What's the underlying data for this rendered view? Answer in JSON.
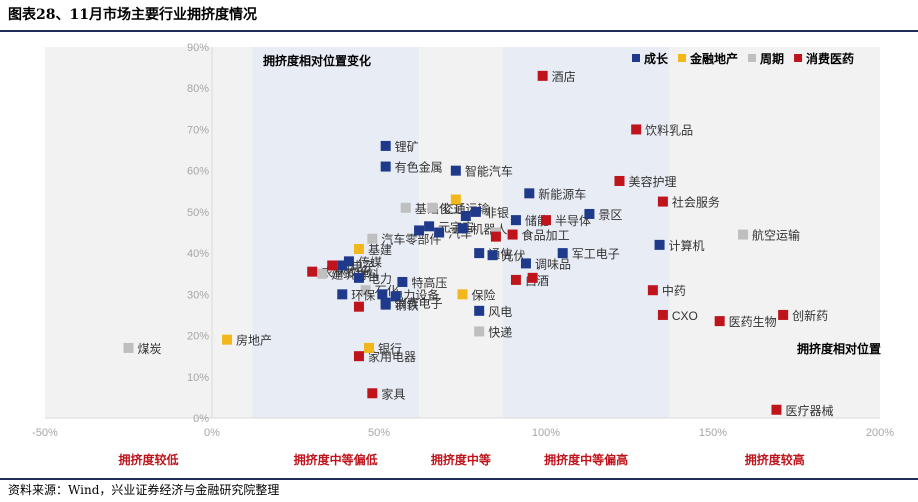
{
  "figure": {
    "title": "图表28、11月市场主要行业拥挤度情况",
    "source": "资料来源：Wind，兴业证券经济与金融研究院整理"
  },
  "chart_data": {
    "type": "scatter",
    "title": "",
    "xlabel": "拥挤度相对位置",
    "ylabel": "",
    "xlim": [
      -50,
      200
    ],
    "ylim": [
      0,
      90
    ],
    "x_ticks": [
      "-50%",
      "0%",
      "50%",
      "100%",
      "150%",
      "200%"
    ],
    "y_ticks": [
      "0%",
      "10%",
      "20%",
      "30%",
      "40%",
      "50%",
      "60%",
      "70%",
      "80%",
      "90%"
    ],
    "ylabel_annotation": "拥挤度相对位置变化",
    "grid": false,
    "legend_position": "top-right",
    "series": [
      {
        "name": "成长",
        "color": "#1f3a8a"
      },
      {
        "name": "金融地产",
        "color": "#f2b81b"
      },
      {
        "name": "周期",
        "color": "#bfbfbf"
      },
      {
        "name": "消费医药",
        "color": "#c0141c"
      }
    ],
    "zones": [
      {
        "label": "拥挤度较低",
        "range": [
          -50,
          12
        ],
        "color": "#f2f2f2"
      },
      {
        "label": "拥挤度中等偏低",
        "range": [
          12,
          62
        ],
        "color": "#e8ecf5"
      },
      {
        "label": "拥挤度中等",
        "range": [
          62,
          87
        ],
        "color": "#f2f2f2"
      },
      {
        "label": "拥挤度中等偏高",
        "range": [
          87,
          137
        ],
        "color": "#e8ecf5"
      },
      {
        "label": "拥挤度较高",
        "range": [
          137,
          200
        ],
        "color": "#f2f2f2"
      }
    ],
    "points": [
      {
        "name": "煤炭",
        "series": "周期",
        "x": -25,
        "y": 17
      },
      {
        "name": "房地产",
        "series": "金融地产",
        "x": 4.5,
        "y": 19
      },
      {
        "name": "家用电器",
        "series": "消费医药",
        "x": 44,
        "y": 15
      },
      {
        "name": "银行",
        "series": "金融地产",
        "x": 47,
        "y": 17
      },
      {
        "name": "家具",
        "series": "消费医药",
        "x": 48,
        "y": 6
      },
      {
        "name": "消费电子",
        "series": "成长",
        "x": 52,
        "y": 28
      },
      {
        "name": "",
        "series": "消费医药",
        "x": 44,
        "y": 27
      },
      {
        "name": "农林牧渔",
        "series": "消费医药",
        "x": 30,
        "y": 35.5
      },
      {
        "name": "建筑材料",
        "series": "周期",
        "x": 33,
        "y": 35
      },
      {
        "name": "传媒",
        "series": "成长",
        "x": 41,
        "y": 38
      },
      {
        "name": "",
        "series": "消费医药",
        "x": 36,
        "y": 37
      },
      {
        "name": "基建",
        "series": "金融地产",
        "x": 44,
        "y": 41
      },
      {
        "name": "汽车零部件",
        "series": "周期",
        "x": 48,
        "y": 43.5
      },
      {
        "name": "电子",
        "series": "成长",
        "x": 39,
        "y": 37
      },
      {
        "name": "电力",
        "series": "成长",
        "x": 44,
        "y": 34
      },
      {
        "name": "特高压",
        "series": "成长",
        "x": 57,
        "y": 33
      },
      {
        "name": "石化",
        "series": "周期",
        "x": 46,
        "y": 31
      },
      {
        "name": "环保",
        "series": "成长",
        "x": 39,
        "y": 30
      },
      {
        "name": "电力设备",
        "series": "成长",
        "x": 51,
        "y": 30
      },
      {
        "name": "",
        "series": "成长",
        "x": 55,
        "y": 29.5
      },
      {
        "name": "钢铁",
        "series": "成长",
        "x": 52,
        "y": 27.5
      },
      {
        "name": "锂矿",
        "series": "成长",
        "x": 52,
        "y": 66
      },
      {
        "name": "有色金属",
        "series": "成长",
        "x": 52,
        "y": 61
      },
      {
        "name": "智能汽车",
        "series": "成长",
        "x": 73,
        "y": 60
      },
      {
        "name": "基础化工",
        "series": "周期",
        "x": 58,
        "y": 51
      },
      {
        "name": "交通运输",
        "series": "周期",
        "x": 66,
        "y": 51
      },
      {
        "name": "",
        "series": "金融地产",
        "x": 73,
        "y": 53
      },
      {
        "name": "非银",
        "series": "成长",
        "x": 79,
        "y": 50
      },
      {
        "name": "元宇宙",
        "series": "成长",
        "x": 65,
        "y": 46.5
      },
      {
        "name": "汽车",
        "series": "成长",
        "x": 68,
        "y": 45
      },
      {
        "name": "",
        "series": "成长",
        "x": 62,
        "y": 45.5
      },
      {
        "name": "机器人",
        "series": "成长",
        "x": 75,
        "y": 46
      },
      {
        "name": "",
        "series": "成长",
        "x": 76,
        "y": 49
      },
      {
        "name": "新能源车",
        "series": "成长",
        "x": 95,
        "y": 54.5
      },
      {
        "name": "储能",
        "series": "成长",
        "x": 91,
        "y": 48
      },
      {
        "name": "通信",
        "series": "成长",
        "x": 80,
        "y": 40
      },
      {
        "name": "食品加工",
        "series": "消费医药",
        "x": 90,
        "y": 44.5
      },
      {
        "name": "",
        "series": "周期",
        "x": 85,
        "y": 45
      },
      {
        "name": "",
        "series": "消费医药",
        "x": 85,
        "y": 44
      },
      {
        "name": "光伏",
        "series": "成长",
        "x": 84,
        "y": 39.5
      },
      {
        "name": "调味品",
        "series": "成长",
        "x": 94,
        "y": 37.5
      },
      {
        "name": "白酒",
        "series": "消费医药",
        "x": 91,
        "y": 33.5
      },
      {
        "name": "",
        "series": "消费医药",
        "x": 96,
        "y": 34
      },
      {
        "name": "保险",
        "series": "金融地产",
        "x": 75,
        "y": 30
      },
      {
        "name": "风电",
        "series": "成长",
        "x": 80,
        "y": 26
      },
      {
        "name": "快递",
        "series": "周期",
        "x": 80,
        "y": 21
      },
      {
        "name": "酒店",
        "series": "消费医药",
        "x": 99,
        "y": 83
      },
      {
        "name": "半导体",
        "series": "消费医药",
        "x": 100,
        "y": 48
      },
      {
        "name": "景区",
        "series": "成长",
        "x": 113,
        "y": 49.5
      },
      {
        "name": "饮料乳品",
        "series": "消费医药",
        "x": 127,
        "y": 70
      },
      {
        "name": "美容护理",
        "series": "消费医药",
        "x": 122,
        "y": 57.5
      },
      {
        "name": "社会服务",
        "series": "消费医药",
        "x": 135,
        "y": 52.5
      },
      {
        "name": "计算机",
        "series": "成长",
        "x": 134,
        "y": 42
      },
      {
        "name": "军工电子",
        "series": "成长",
        "x": 105,
        "y": 40
      },
      {
        "name": "航空运输",
        "series": "周期",
        "x": 159,
        "y": 44.5
      },
      {
        "name": "中药",
        "series": "消费医药",
        "x": 132,
        "y": 31
      },
      {
        "name": "CXO",
        "series": "消费医药",
        "x": 135,
        "y": 25
      },
      {
        "name": "医药生物",
        "series": "消费医药",
        "x": 152,
        "y": 23.5
      },
      {
        "name": "创新药",
        "series": "消费医药",
        "x": 171,
        "y": 25
      },
      {
        "name": "医疗器械",
        "series": "消费医药",
        "x": 169,
        "y": 2
      }
    ]
  }
}
